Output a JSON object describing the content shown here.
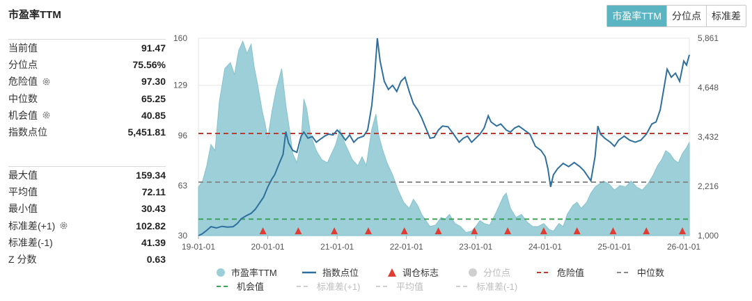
{
  "title": "市盈率TTM",
  "tabs": [
    "市盈率TTM",
    "分位点",
    "标准差"
  ],
  "stats_top": [
    {
      "label": "当前值",
      "value": "91.47",
      "gear": false
    },
    {
      "label": "分位点",
      "value": "75.56%",
      "gear": false
    },
    {
      "label": "危险值",
      "value": "97.30",
      "gear": true
    },
    {
      "label": "中位数",
      "value": "65.25",
      "gear": false
    },
    {
      "label": "机会值",
      "value": "40.85",
      "gear": true
    },
    {
      "label": "指数点位",
      "value": "5,451.81",
      "gear": false
    }
  ],
  "stats_bottom": [
    {
      "label": "最大值",
      "value": "159.34",
      "gear": false
    },
    {
      "label": "平均值",
      "value": "72.11",
      "gear": false
    },
    {
      "label": "最小值",
      "value": "30.43",
      "gear": false
    },
    {
      "label": "标准差(+1)",
      "value": "102.82",
      "gear": true
    },
    {
      "label": "标准差(-1)",
      "value": "41.39",
      "gear": false
    },
    {
      "label": "Z 分数",
      "value": "0.63",
      "gear": false
    }
  ],
  "colors": {
    "pe_area": "#9ccfd8",
    "index_line": "#2e6f9e",
    "marker": "#e03c31",
    "danger": "#c0392b",
    "median": "#8a8a8a",
    "chance": "#3aa655",
    "muted": "#cfcfcf"
  },
  "chart_data": {
    "type": "area",
    "x_ticks": [
      "19-01-01",
      "20-01-01",
      "21-01-01",
      "22-01-01",
      "23-01-01",
      "24-01-01",
      "25-01-01",
      "26-01-01"
    ],
    "y_left_ticks": [
      "160",
      "129",
      "96",
      "63",
      "30"
    ],
    "y_left_range": [
      30,
      160
    ],
    "y_right_ticks": [
      "5,861",
      "4,648",
      "3,432",
      "2,216",
      "1,000"
    ],
    "y_right_range": [
      1000,
      5861
    ],
    "x_range": [
      2019.0,
      2026.08
    ],
    "reference_lines": [
      {
        "name": "危险值",
        "value": 97.3,
        "style": "dashed",
        "color": "#c0392b"
      },
      {
        "name": "中位数",
        "value": 65.25,
        "style": "dashed",
        "color": "#8a8a8a"
      },
      {
        "name": "机会值",
        "value": 40.85,
        "style": "dashed",
        "color": "#3aa655"
      }
    ],
    "series": [
      {
        "name": "市盈率TTM",
        "axis": "left",
        "kind": "area",
        "points": [
          [
            2019.0,
            62
          ],
          [
            2019.06,
            66
          ],
          [
            2019.12,
            76
          ],
          [
            2019.18,
            90
          ],
          [
            2019.24,
            86
          ],
          [
            2019.3,
            118
          ],
          [
            2019.38,
            140
          ],
          [
            2019.46,
            144
          ],
          [
            2019.52,
            136
          ],
          [
            2019.58,
            152
          ],
          [
            2019.64,
            158
          ],
          [
            2019.7,
            150
          ],
          [
            2019.76,
            156
          ],
          [
            2019.8,
            142
          ],
          [
            2019.86,
            128
          ],
          [
            2019.92,
            112
          ],
          [
            2019.96,
            104
          ],
          [
            2020.0,
            94
          ],
          [
            2020.06,
            112
          ],
          [
            2020.12,
            126
          ],
          [
            2020.2,
            140
          ],
          [
            2020.26,
            116
          ],
          [
            2020.32,
            98
          ],
          [
            2020.36,
            84
          ],
          [
            2020.42,
            78
          ],
          [
            2020.48,
            92
          ],
          [
            2020.52,
            120
          ],
          [
            2020.56,
            114
          ],
          [
            2020.62,
            96
          ],
          [
            2020.7,
            86
          ],
          [
            2020.78,
            80
          ],
          [
            2020.86,
            78
          ],
          [
            2020.92,
            84
          ],
          [
            2020.98,
            90
          ],
          [
            2021.04,
            100
          ],
          [
            2021.1,
            92
          ],
          [
            2021.16,
            86
          ],
          [
            2021.22,
            80
          ],
          [
            2021.3,
            76
          ],
          [
            2021.36,
            82
          ],
          [
            2021.42,
            76
          ],
          [
            2021.5,
            100
          ],
          [
            2021.56,
            110
          ],
          [
            2021.6,
            96
          ],
          [
            2021.66,
            86
          ],
          [
            2021.72,
            78
          ],
          [
            2021.8,
            70
          ],
          [
            2021.88,
            60
          ],
          [
            2021.96,
            52
          ],
          [
            2022.04,
            48
          ],
          [
            2022.1,
            54
          ],
          [
            2022.16,
            50
          ],
          [
            2022.22,
            44
          ],
          [
            2022.28,
            40
          ],
          [
            2022.34,
            36
          ],
          [
            2022.42,
            37
          ],
          [
            2022.5,
            42
          ],
          [
            2022.56,
            41
          ],
          [
            2022.62,
            44
          ],
          [
            2022.7,
            38
          ],
          [
            2022.78,
            36
          ],
          [
            2022.86,
            32
          ],
          [
            2022.94,
            33
          ],
          [
            2023.0,
            36
          ],
          [
            2023.06,
            40
          ],
          [
            2023.12,
            38
          ],
          [
            2023.2,
            37
          ],
          [
            2023.28,
            44
          ],
          [
            2023.34,
            50
          ],
          [
            2023.4,
            56
          ],
          [
            2023.44,
            58
          ],
          [
            2023.5,
            48
          ],
          [
            2023.58,
            42
          ],
          [
            2023.66,
            44
          ],
          [
            2023.74,
            39
          ],
          [
            2023.82,
            36
          ],
          [
            2023.9,
            36
          ],
          [
            2023.98,
            38
          ],
          [
            2024.06,
            34
          ],
          [
            2024.12,
            33
          ],
          [
            2024.2,
            38
          ],
          [
            2024.26,
            36
          ],
          [
            2024.32,
            44
          ],
          [
            2024.4,
            50
          ],
          [
            2024.46,
            52
          ],
          [
            2024.52,
            48
          ],
          [
            2024.6,
            52
          ],
          [
            2024.66,
            58
          ],
          [
            2024.72,
            62
          ],
          [
            2024.78,
            64
          ],
          [
            2024.84,
            66
          ],
          [
            2024.92,
            64
          ],
          [
            2025.0,
            60
          ],
          [
            2025.08,
            63
          ],
          [
            2025.16,
            62
          ],
          [
            2025.24,
            66
          ],
          [
            2025.32,
            62
          ],
          [
            2025.4,
            60
          ],
          [
            2025.48,
            64
          ],
          [
            2025.56,
            70
          ],
          [
            2025.62,
            76
          ],
          [
            2025.68,
            80
          ],
          [
            2025.74,
            86
          ],
          [
            2025.8,
            84
          ],
          [
            2025.86,
            80
          ],
          [
            2025.92,
            78
          ],
          [
            2025.98,
            84
          ],
          [
            2026.04,
            88
          ],
          [
            2026.08,
            91.47
          ]
        ]
      },
      {
        "name": "指数点位",
        "axis": "right",
        "kind": "line",
        "points": [
          [
            2019.0,
            1000
          ],
          [
            2019.05,
            1040
          ],
          [
            2019.12,
            1130
          ],
          [
            2019.18,
            1220
          ],
          [
            2019.26,
            1190
          ],
          [
            2019.34,
            1230
          ],
          [
            2019.42,
            1210
          ],
          [
            2019.5,
            1220
          ],
          [
            2019.56,
            1300
          ],
          [
            2019.62,
            1420
          ],
          [
            2019.7,
            1500
          ],
          [
            2019.76,
            1550
          ],
          [
            2019.82,
            1650
          ],
          [
            2019.88,
            1800
          ],
          [
            2019.94,
            1950
          ],
          [
            2020.0,
            2200
          ],
          [
            2020.06,
            2400
          ],
          [
            2020.1,
            2500
          ],
          [
            2020.16,
            2760
          ],
          [
            2020.22,
            3000
          ],
          [
            2020.26,
            3560
          ],
          [
            2020.3,
            3280
          ],
          [
            2020.36,
            3100
          ],
          [
            2020.42,
            3050
          ],
          [
            2020.48,
            3450
          ],
          [
            2020.52,
            3550
          ],
          [
            2020.58,
            3400
          ],
          [
            2020.64,
            3440
          ],
          [
            2020.7,
            3300
          ],
          [
            2020.76,
            3380
          ],
          [
            2020.82,
            3450
          ],
          [
            2020.88,
            3500
          ],
          [
            2020.94,
            3480
          ],
          [
            2021.0,
            3600
          ],
          [
            2021.06,
            3500
          ],
          [
            2021.12,
            3350
          ],
          [
            2021.18,
            3480
          ],
          [
            2021.24,
            3300
          ],
          [
            2021.3,
            3400
          ],
          [
            2021.38,
            3450
          ],
          [
            2021.44,
            3600
          ],
          [
            2021.5,
            4200
          ],
          [
            2021.54,
            4900
          ],
          [
            2021.58,
            5861
          ],
          [
            2021.62,
            5300
          ],
          [
            2021.68,
            4800
          ],
          [
            2021.74,
            4600
          ],
          [
            2021.8,
            4700
          ],
          [
            2021.86,
            4550
          ],
          [
            2021.92,
            4800
          ],
          [
            2021.98,
            4900
          ],
          [
            2022.04,
            4550
          ],
          [
            2022.1,
            4250
          ],
          [
            2022.16,
            4100
          ],
          [
            2022.22,
            3900
          ],
          [
            2022.28,
            3650
          ],
          [
            2022.34,
            3400
          ],
          [
            2022.4,
            3420
          ],
          [
            2022.46,
            3600
          ],
          [
            2022.52,
            3700
          ],
          [
            2022.6,
            3680
          ],
          [
            2022.68,
            3500
          ],
          [
            2022.76,
            3300
          ],
          [
            2022.82,
            3400
          ],
          [
            2022.88,
            3450
          ],
          [
            2022.94,
            3300
          ],
          [
            2023.0,
            3400
          ],
          [
            2023.06,
            3500
          ],
          [
            2023.12,
            3650
          ],
          [
            2023.18,
            3950
          ],
          [
            2023.22,
            3800
          ],
          [
            2023.3,
            3700
          ],
          [
            2023.36,
            3750
          ],
          [
            2023.44,
            3600
          ],
          [
            2023.5,
            3550
          ],
          [
            2023.56,
            3650
          ],
          [
            2023.62,
            3700
          ],
          [
            2023.7,
            3600
          ],
          [
            2023.78,
            3500
          ],
          [
            2023.86,
            3200
          ],
          [
            2023.94,
            3100
          ],
          [
            2024.0,
            2950
          ],
          [
            2024.04,
            2650
          ],
          [
            2024.08,
            2200
          ],
          [
            2024.12,
            2500
          ],
          [
            2024.18,
            2650
          ],
          [
            2024.26,
            2780
          ],
          [
            2024.34,
            2700
          ],
          [
            2024.42,
            2800
          ],
          [
            2024.5,
            2700
          ],
          [
            2024.56,
            2600
          ],
          [
            2024.62,
            2450
          ],
          [
            2024.66,
            2350
          ],
          [
            2024.72,
            2950
          ],
          [
            2024.76,
            3700
          ],
          [
            2024.8,
            3500
          ],
          [
            2024.86,
            3400
          ],
          [
            2024.94,
            3300
          ],
          [
            2025.0,
            3200
          ],
          [
            2025.06,
            3350
          ],
          [
            2025.14,
            3450
          ],
          [
            2025.22,
            3350
          ],
          [
            2025.3,
            3300
          ],
          [
            2025.38,
            3350
          ],
          [
            2025.46,
            3500
          ],
          [
            2025.54,
            3750
          ],
          [
            2025.6,
            3800
          ],
          [
            2025.66,
            4100
          ],
          [
            2025.72,
            4700
          ],
          [
            2025.76,
            5100
          ],
          [
            2025.82,
            4900
          ],
          [
            2025.88,
            5000
          ],
          [
            2025.94,
            4800
          ],
          [
            2026.0,
            5300
          ],
          [
            2026.04,
            5200
          ],
          [
            2026.08,
            5451.81
          ]
        ]
      },
      {
        "name": "调仓标志",
        "axis": "left",
        "kind": "markers",
        "x": [
          2019.93,
          2020.44,
          2020.96,
          2021.45,
          2021.97,
          2022.46,
          2022.98,
          2023.46,
          2023.98,
          2024.46,
          2024.98,
          2025.46,
          2025.98
        ]
      }
    ]
  },
  "legend": [
    {
      "name": "市盈率TTM",
      "symbol": "circle",
      "color": "#9ccfd8",
      "muted": false
    },
    {
      "name": "指数点位",
      "symbol": "line",
      "color": "#2e6f9e",
      "muted": false
    },
    {
      "name": "调仓标志",
      "symbol": "triangle",
      "color": "#e03c31",
      "muted": false
    },
    {
      "name": "分位点",
      "symbol": "circle",
      "color": "#cfcfcf",
      "muted": true
    },
    {
      "name": "危险值",
      "symbol": "dash",
      "color": "#c0392b",
      "muted": false
    },
    {
      "name": "中位数",
      "symbol": "dash",
      "color": "#8a8a8a",
      "muted": false
    },
    {
      "name": "机会值",
      "symbol": "dash",
      "color": "#3aa655",
      "muted": false
    },
    {
      "name": "标准差(+1)",
      "symbol": "dash",
      "color": "#cfcfcf",
      "muted": true
    },
    {
      "name": "平均值",
      "symbol": "dash",
      "color": "#cfcfcf",
      "muted": true
    },
    {
      "name": "标准差(-1)",
      "symbol": "dash",
      "color": "#cfcfcf",
      "muted": true
    }
  ]
}
